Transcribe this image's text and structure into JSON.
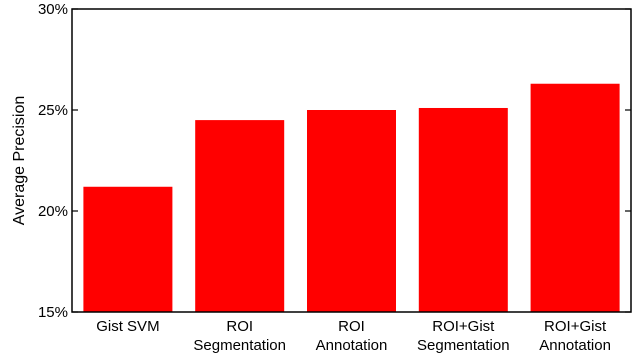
{
  "chart_data": {
    "type": "bar",
    "title": "",
    "xlabel": "",
    "ylabel": "Average Precision",
    "categories": [
      [
        "Gist SVM"
      ],
      [
        "ROI",
        "Segmentation"
      ],
      [
        "ROI",
        "Annotation"
      ],
      [
        "ROI+Gist",
        "Segmentation"
      ],
      [
        "ROI+Gist",
        "Annotation"
      ]
    ],
    "values": [
      21.2,
      24.5,
      25.0,
      25.1,
      26.3
    ],
    "ylim": [
      15,
      30
    ],
    "yticks": [
      15,
      20,
      25,
      30
    ],
    "ytick_labels": [
      "15%",
      "20%",
      "25%",
      "30%"
    ],
    "bar_color": "#ff0000",
    "grid": false,
    "legend": "none"
  }
}
